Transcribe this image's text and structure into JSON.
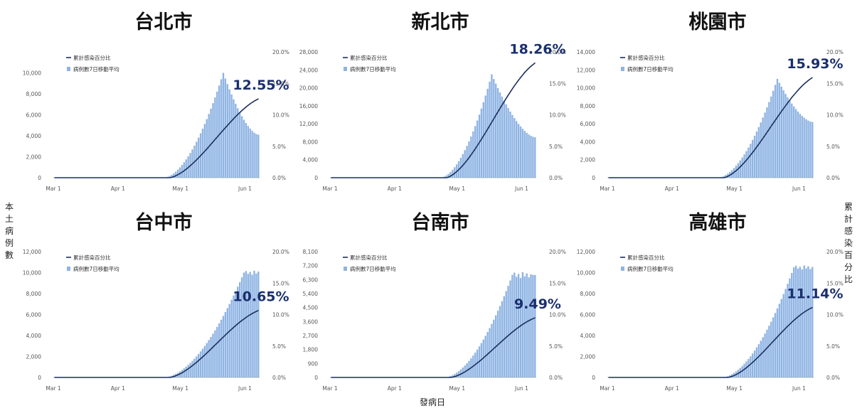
{
  "figure": {
    "left_axis_title": "本土病例數",
    "right_axis_title": "累計感染百分比",
    "x_axis_title": "發病日"
  },
  "chart_data": [
    {
      "type": "bar+line",
      "title": "台北市",
      "legend": [
        "累計感染百分比",
        "病例數7日移動平均"
      ],
      "x_ticks": [
        "Mar 1",
        "Apr 1",
        "May 1",
        "Jun 1"
      ],
      "y_left_ticks": [
        "0",
        "2,000",
        "4,000",
        "6,000",
        "8,000",
        "10,000"
      ],
      "y_left_max": 12000,
      "y_right_ticks": [
        "0.0%",
        "5.0%",
        "10.0%",
        "15.0%",
        "20.0%"
      ],
      "y_right_max": 20,
      "bars_days": 100,
      "bars": {
        "start": 53,
        "peak_day": 82,
        "peak": 10000,
        "end": 4100
      },
      "line": {
        "start": 56,
        "end": 12.55
      },
      "annotation": "12.55%"
    },
    {
      "type": "bar+line",
      "title": "新北市",
      "legend": [
        "累計感染百分比",
        "病例數7日移動平均"
      ],
      "x_ticks": [
        "Mar 1",
        "Apr 1",
        "May 1",
        "Jun 1"
      ],
      "y_left_ticks": [
        "0",
        "4,000",
        "8,000",
        "12,000",
        "16,000",
        "20,000",
        "24,000",
        "28,000"
      ],
      "y_left_max": 28000,
      "y_right_ticks": [
        "0.0%",
        "5.0%",
        "10.0%",
        "15.0%",
        "20.0%"
      ],
      "y_right_max": 20,
      "bars_days": 100,
      "bars": {
        "start": 53,
        "peak_day": 78,
        "peak": 23000,
        "end": 9000
      },
      "line": {
        "start": 56,
        "end": 18.26
      },
      "annotation": "18.26%"
    },
    {
      "type": "bar+line",
      "title": "桃園市",
      "legend": [
        "累計感染百分比",
        "病例數7日移動平均"
      ],
      "x_ticks": [
        "Mar 1",
        "Apr 1",
        "May 1",
        "Jun 1"
      ],
      "y_left_ticks": [
        "0",
        "2,000",
        "4,000",
        "6,000",
        "8,000",
        "10,000",
        "12,000",
        "14,000"
      ],
      "y_left_max": 14000,
      "y_right_ticks": [
        "0.0%",
        "5.0%",
        "10.0%",
        "15.0%",
        "20.0%"
      ],
      "y_right_max": 20,
      "bars_days": 100,
      "bars": {
        "start": 53,
        "peak_day": 82,
        "peak": 11000,
        "end": 6200
      },
      "line": {
        "start": 56,
        "end": 15.93
      },
      "annotation": "15.93%"
    },
    {
      "type": "bar+line",
      "title": "台中市",
      "legend": [
        "累計感染百分比",
        "病例數7日移動平均"
      ],
      "x_ticks": [
        "Mar 1",
        "Apr 1",
        "May 1",
        "Jun 1"
      ],
      "y_left_ticks": [
        "0",
        "2,000",
        "4,000",
        "6,000",
        "8,000",
        "10,000",
        "12,000"
      ],
      "y_left_max": 12000,
      "y_right_ticks": [
        "0.0%",
        "5.0%",
        "10.0%",
        "15.0%",
        "20.0%"
      ],
      "y_right_max": 20,
      "bars_days": 100,
      "bars": {
        "start": 53,
        "peak_day": 92,
        "peak": 10000,
        "end": 10000,
        "plateau": true
      },
      "line": {
        "start": 56,
        "end": 10.65
      },
      "annotation": "10.65%"
    },
    {
      "type": "bar+line",
      "title": "台南市",
      "legend": [
        "累計感染百分比",
        "病例數7日移動平均"
      ],
      "x_ticks": [
        "Mar 1",
        "Apr 1",
        "May 1",
        "Jun 1"
      ],
      "y_left_ticks": [
        "0",
        "900",
        "1,800",
        "2,700",
        "3,600",
        "4,500",
        "5,400",
        "6,300",
        "7,200",
        "8,100"
      ],
      "y_left_max": 8100,
      "y_right_ticks": [
        "0.0%",
        "5.0%",
        "10.0%",
        "15.0%",
        "20.0%"
      ],
      "y_right_max": 20,
      "bars_days": 100,
      "bars": {
        "start": 55,
        "peak_day": 88,
        "peak": 6600,
        "end": 6500,
        "plateau": true
      },
      "line": {
        "start": 58,
        "end": 9.49
      },
      "annotation": "9.49%"
    },
    {
      "type": "bar+line",
      "title": "高雄市",
      "legend": [
        "累計感染百分比",
        "病例數7日移動平均"
      ],
      "x_ticks": [
        "Mar 1",
        "Apr 1",
        "May 1",
        "Jun 1"
      ],
      "y_left_ticks": [
        "0",
        "2,000",
        "4,000",
        "6,000",
        "8,000",
        "10,000",
        "12,000"
      ],
      "y_left_max": 12000,
      "y_right_ticks": [
        "0.0%",
        "5.0%",
        "10.0%",
        "15.0%",
        "20.0%"
      ],
      "y_right_max": 20,
      "bars_days": 100,
      "bars": {
        "start": 55,
        "peak_day": 90,
        "peak": 10500,
        "end": 10300,
        "plateau": true
      },
      "line": {
        "start": 58,
        "end": 11.14
      },
      "annotation": "11.14%"
    }
  ]
}
